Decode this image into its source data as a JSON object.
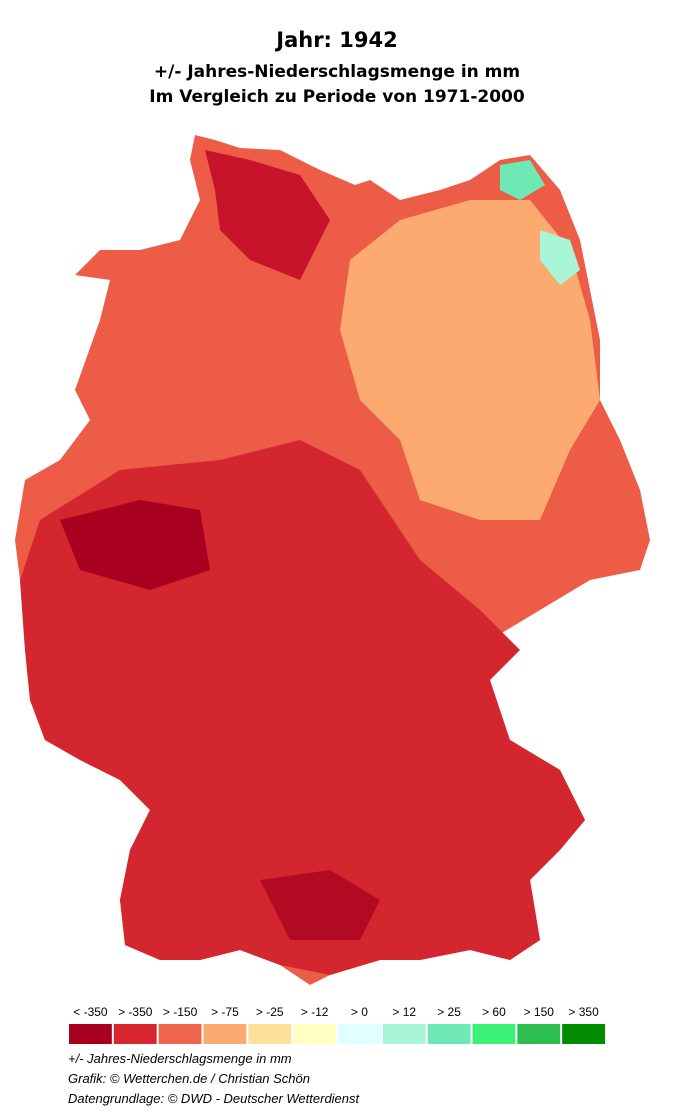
{
  "header": {
    "title": "Jahr: 1942",
    "subtitle_lines": [
      "+/- Jahres-Niederschlagsmenge in mm",
      "Im Vergleich zu Periode von 1971-2000"
    ]
  },
  "legend": {
    "items": [
      {
        "label": "< -350",
        "color": "#a8001e"
      },
      {
        "label": "> -350",
        "color": "#d7262e"
      },
      {
        "label": "> -150",
        "color": "#f0644c"
      },
      {
        "label": "> -75",
        "color": "#fcaa70"
      },
      {
        "label": "> -25",
        "color": "#fde09a"
      },
      {
        "label": "> -12",
        "color": "#ffffc2"
      },
      {
        "label": "> 0",
        "color": "#e0ffff"
      },
      {
        "label": "> 12",
        "color": "#a8f5d8"
      },
      {
        "label": "> 25",
        "color": "#6ee8b4"
      },
      {
        "label": "> 60",
        "color": "#3cf078"
      },
      {
        "label": "> 150",
        "color": "#2dbe50"
      },
      {
        "label": "> 350",
        "color": "#008c00"
      }
    ]
  },
  "footer": [
    "+/- Jahres-Niederschlagsmenge in mm",
    "Grafik: © Wetterchen.de / Christian Schön",
    "Datengrundlage: © DWD - Deutscher Wetterdienst"
  ]
}
